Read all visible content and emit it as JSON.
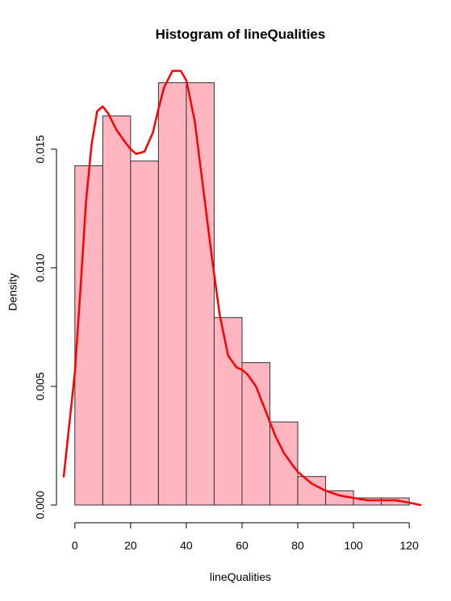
{
  "chart_data": {
    "type": "bar",
    "title": "Histogram of lineQualities",
    "xlabel": "lineQualities",
    "ylabel": "Density",
    "bins": [
      [
        0,
        10
      ],
      [
        10,
        20
      ],
      [
        20,
        30
      ],
      [
        30,
        40
      ],
      [
        40,
        50
      ],
      [
        50,
        60
      ],
      [
        60,
        70
      ],
      [
        70,
        80
      ],
      [
        80,
        90
      ],
      [
        90,
        100
      ],
      [
        100,
        110
      ],
      [
        110,
        120
      ]
    ],
    "values": [
      0.0143,
      0.0164,
      0.0145,
      0.0178,
      0.0178,
      0.0079,
      0.006,
      0.0035,
      0.0012,
      0.0006,
      0.0003,
      0.0003
    ],
    "density_curve": {
      "x": [
        -4,
        0,
        2,
        4,
        6,
        8,
        10,
        12,
        15,
        18,
        20,
        22,
        25,
        28,
        30,
        32,
        35,
        38,
        40,
        43,
        46,
        49,
        52,
        55,
        58,
        60,
        62,
        65,
        68,
        70,
        72,
        75,
        78,
        80,
        85,
        90,
        95,
        100,
        105,
        110,
        115,
        120,
        124
      ],
      "y": [
        0.0012,
        0.0056,
        0.0091,
        0.0128,
        0.0152,
        0.0166,
        0.0168,
        0.0165,
        0.0158,
        0.0153,
        0.015,
        0.0148,
        0.0149,
        0.0157,
        0.0167,
        0.0176,
        0.0183,
        0.0183,
        0.0179,
        0.0162,
        0.0134,
        0.0106,
        0.008,
        0.0063,
        0.0058,
        0.0057,
        0.0055,
        0.005,
        0.0041,
        0.0035,
        0.0029,
        0.0022,
        0.0017,
        0.0014,
        0.0009,
        0.0006,
        0.0004,
        0.0003,
        0.0002,
        0.0002,
        0.0002,
        0.0001,
        0.0
      ]
    },
    "xticks": [
      0,
      20,
      40,
      60,
      80,
      100,
      120
    ],
    "yticks": [
      0.0,
      0.005,
      0.01,
      0.015
    ],
    "xlim": [
      -4,
      124
    ],
    "ylim": [
      0,
      0.0185
    ],
    "grid": false,
    "bar_fill_color": "#ffb6c1",
    "bar_stroke_color": "#333333",
    "curve_color": "#ff0000"
  }
}
